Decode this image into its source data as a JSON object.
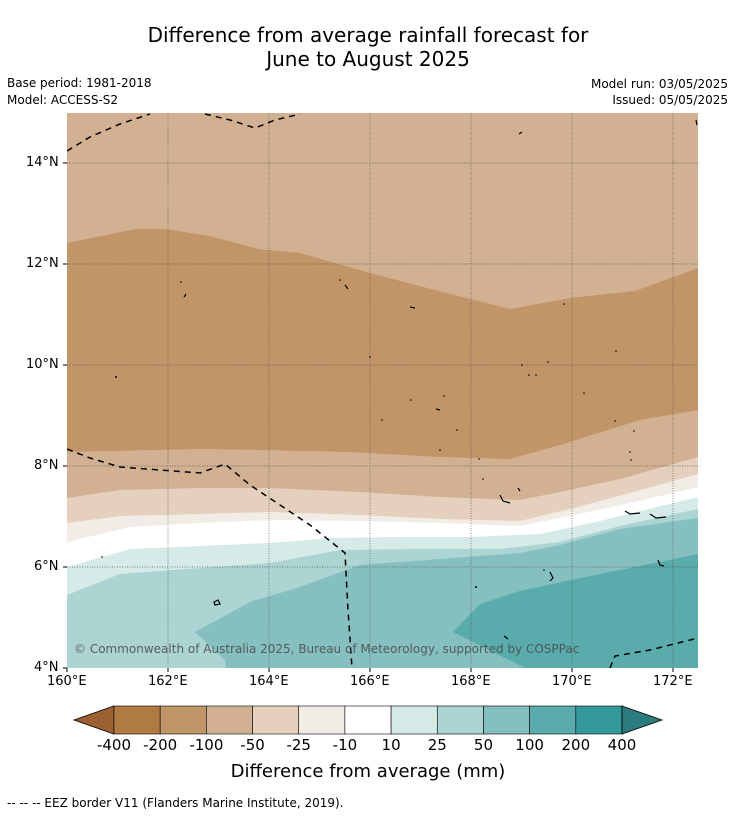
{
  "title": {
    "line1": "Difference from average rainfall forecast for",
    "line2": "June to August 2025"
  },
  "meta": {
    "base_period": "Base period: 1981-2018",
    "model": "Model: ACCESS-S2",
    "model_run": "Model run: 03/05/2025",
    "issued": "Issued: 05/05/2025"
  },
  "map": {
    "copyright": "© Commonwealth of Australia 2025, Bureau of Meteorology, supported by COSPPac",
    "lat_labels": [
      "14°N",
      "12°N",
      "10°N",
      "8°N",
      "6°N",
      "4°N"
    ],
    "lon_labels": [
      "160°E",
      "162°E",
      "164°E",
      "166°E",
      "168°E",
      "170°E",
      "172°E"
    ],
    "extent": {
      "lon": [
        160,
        172.5
      ],
      "lat": [
        4,
        15
      ]
    }
  },
  "colorbar": {
    "labels": [
      "-400",
      "-200",
      "-100",
      "-50",
      "-25",
      "-10",
      "10",
      "25",
      "50",
      "100",
      "200",
      "400"
    ],
    "colors": [
      "#9c6130",
      "#b07a43",
      "#c29569",
      "#d2b192",
      "#e4d0bc",
      "#f2ece6",
      "#ffffff",
      "#d6eae8",
      "#abd4d3",
      "#86bfbf",
      "#5aabab",
      "#33999a",
      "#2a7d7c"
    ],
    "title": "Difference from average (mm)"
  },
  "footnote": "--  --  -- EEZ border V11 (Flanders Marine Institute, 2019)."
}
